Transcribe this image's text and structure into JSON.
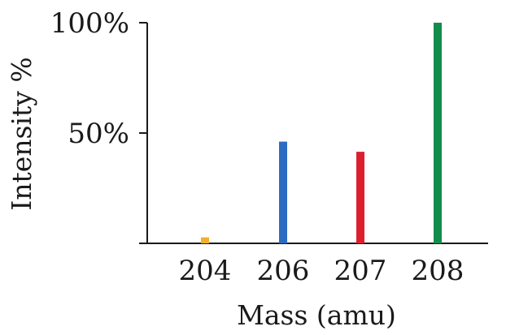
{
  "chart_data": {
    "type": "bar",
    "title": "",
    "xlabel": "Mass (amu)",
    "ylabel": "Intensity %",
    "categories": [
      "204",
      "206",
      "207",
      "208"
    ],
    "values": [
      2.7,
      46.1,
      41.5,
      100
    ],
    "ylim": [
      0,
      100
    ],
    "yticks": [
      {
        "value": 50,
        "label": "50%"
      },
      {
        "value": 100,
        "label": "100%"
      }
    ],
    "colors": [
      "#f2ae2e",
      "#2d6bc1",
      "#dc1f2e",
      "#128d4c"
    ],
    "grid": false,
    "legend": "none"
  }
}
